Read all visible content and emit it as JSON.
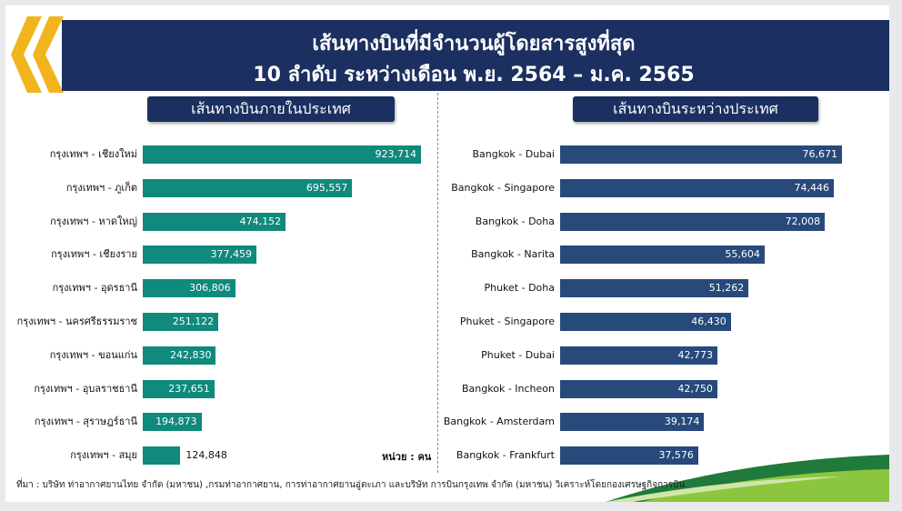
{
  "header": {
    "title_line1": "เส้นทางบินที่มีจำนวนผู้โดยสารสูงที่สุด",
    "title_line2": "10 ลำดับ ระหว่างเดือน พ.ย. 2564 – ม.ค. 2565"
  },
  "sections": {
    "domestic_title": "เส้นทางบินภายในประเทศ",
    "international_title": "เส้นทางบินระหว่างประเทศ"
  },
  "unit_left": "หน่วย : คน",
  "unit_right": "หน่วย : คน",
  "source": "ที่มา : บริษัท ท่าอากาศยานไทย จำกัด (มหาชน) ,กรมท่าอากาศยาน, การท่าอากาศยานอู่ตะเภา และบริษัท การบินกรุงเทพ จำกัด (มหาชน) วิเคราะห์โดยกองเศรษฐกิจการบิน",
  "colors": {
    "domestic_bar": "#0f8a7c",
    "international_bar": "#274a7b",
    "banner": "#1b2f60",
    "chevron": "#f2b41c"
  },
  "icons": [
    "chevron-double-icon",
    "green-swoosh-icon"
  ],
  "chart_data": [
    {
      "type": "bar",
      "orientation": "horizontal",
      "title": "เส้นทางบินภายในประเทศ",
      "categories": [
        "กรุงเทพฯ - เชียงใหม่",
        "กรุงเทพฯ - ภูเก็ต",
        "กรุงเทพฯ - หาดใหญ่",
        "กรุงเทพฯ - เชียงราย",
        "กรุงเทพฯ - อุดรธานี",
        "กรุงเทพฯ - นครศรีธรรมราช",
        "กรุงเทพฯ - ขอนแก่น",
        "กรุงเทพฯ - อุบลราชธานี",
        "กรุงเทพฯ - สุราษฎร์ธานี",
        "กรุงเทพฯ - สมุย"
      ],
      "values": [
        923714,
        695557,
        474152,
        377459,
        306806,
        251122,
        242830,
        237651,
        194873,
        124848
      ],
      "value_labels": [
        "923,714",
        "695,557",
        "474,152",
        "377,459",
        "306,806",
        "251,122",
        "242,830",
        "237,651",
        "194,873",
        "124,848"
      ],
      "xlim": [
        0,
        923714
      ]
    },
    {
      "type": "bar",
      "orientation": "horizontal",
      "title": "เส้นทางบินระหว่างประเทศ",
      "categories": [
        "Bangkok - Dubai",
        "Bangkok - Singapore",
        "Bangkok - Doha",
        "Bangkok - Narita",
        "Phuket - Doha",
        "Phuket - Singapore",
        "Phuket - Dubai",
        "Bangkok - Incheon",
        "Bangkok - Amsterdam",
        "Bangkok - Frankfurt"
      ],
      "values": [
        76671,
        74446,
        72008,
        55604,
        51262,
        46430,
        42773,
        42750,
        39174,
        37576
      ],
      "value_labels": [
        "76,671",
        "74,446",
        "72,008",
        "55,604",
        "51,262",
        "46,430",
        "42,773",
        "42,750",
        "39,174",
        "37,576"
      ],
      "xlim": [
        0,
        76671
      ]
    }
  ]
}
